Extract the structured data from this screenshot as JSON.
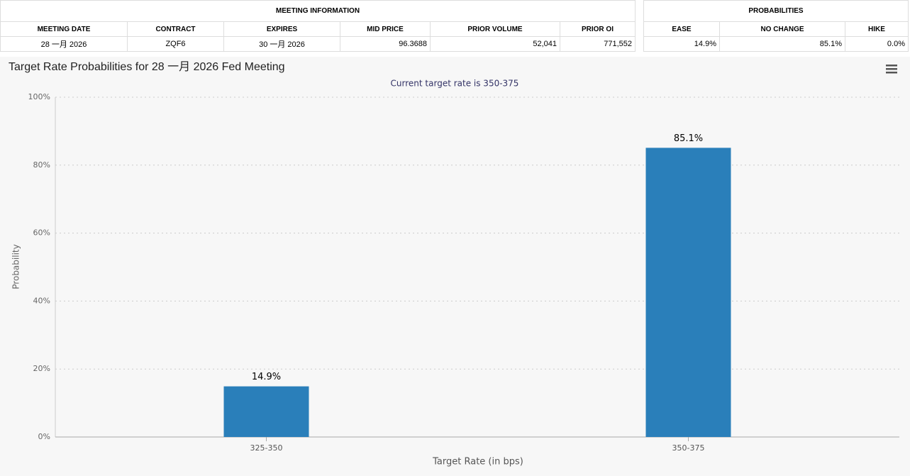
{
  "meeting_information": {
    "title": "MEETING INFORMATION",
    "columns": [
      "MEETING DATE",
      "CONTRACT",
      "EXPIRES",
      "MID PRICE",
      "PRIOR VOLUME",
      "PRIOR OI"
    ],
    "row": [
      "28 一月 2026",
      "ZQF6",
      "30 一月 2026",
      "96.3688",
      "52,041",
      "771,552"
    ]
  },
  "probabilities": {
    "title": "PROBABILITIES",
    "columns": [
      "EASE",
      "NO CHANGE",
      "HIKE"
    ],
    "row": [
      "14.9%",
      "85.1%",
      "0.0%"
    ]
  },
  "chart_data": {
    "type": "bar",
    "title": "Target Rate Probabilities for 28 一月 2026 Fed Meeting",
    "subtitle": "Current target rate is 350-375",
    "x_label": "Target Rate (in bps)",
    "y_label": "Probability",
    "categories": [
      "325-350",
      "350-375"
    ],
    "values": [
      14.9,
      85.1
    ],
    "value_labels": [
      "14.9%",
      "85.1%"
    ],
    "color": "#2a7fba",
    "ylim": [
      0,
      100
    ],
    "yticks": [
      {
        "value": 0,
        "label": "0%"
      },
      {
        "value": 20,
        "label": "20%"
      },
      {
        "value": 40,
        "label": "40%"
      },
      {
        "value": 60,
        "label": "60%"
      },
      {
        "value": 80,
        "label": "80%"
      },
      {
        "value": 100,
        "label": "100%"
      }
    ],
    "grid": true
  }
}
